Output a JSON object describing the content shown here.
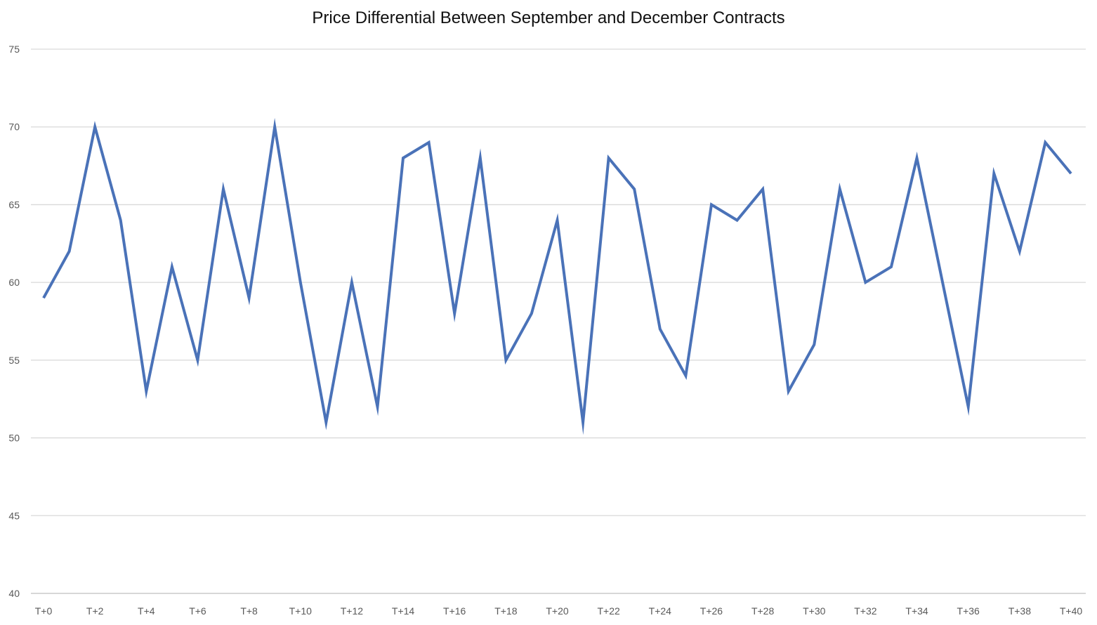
{
  "chart_data": {
    "type": "line",
    "title": "Price Differential Between September and December Contracts",
    "xlabel": "",
    "ylabel": "",
    "ylim": [
      40,
      75
    ],
    "y_ticks": [
      40,
      45,
      50,
      55,
      60,
      65,
      70,
      75
    ],
    "grid": true,
    "legend": "none",
    "x": [
      "T+0",
      "T+1",
      "T+2",
      "T+3",
      "T+4",
      "T+5",
      "T+6",
      "T+7",
      "T+8",
      "T+9",
      "T+10",
      "T+11",
      "T+12",
      "T+13",
      "T+14",
      "T+15",
      "T+16",
      "T+17",
      "T+18",
      "T+19",
      "T+20",
      "T+21",
      "T+22",
      "T+23",
      "T+24",
      "T+25",
      "T+26",
      "T+27",
      "T+28",
      "T+29",
      "T+30",
      "T+31",
      "T+32",
      "T+33",
      "T+34",
      "T+35",
      "T+36",
      "T+37",
      "T+38",
      "T+39",
      "T+40"
    ],
    "x_tick_labels": [
      "T+0",
      "T+2",
      "T+4",
      "T+6",
      "T+8",
      "T+10",
      "T+12",
      "T+14",
      "T+16",
      "T+18",
      "T+20",
      "T+22",
      "T+24",
      "T+26",
      "T+28",
      "T+30",
      "T+32",
      "T+34",
      "T+36",
      "T+38",
      "T+40"
    ],
    "series": [
      {
        "values": [
          59,
          62,
          70,
          64,
          53,
          61,
          55,
          66,
          59,
          70,
          60,
          51,
          60,
          52,
          68,
          69,
          58,
          68,
          55,
          58,
          64,
          51,
          68,
          66,
          57,
          54,
          65,
          64,
          66,
          53,
          56,
          66,
          60,
          61,
          68,
          60,
          52,
          67,
          62,
          69,
          67
        ],
        "color": "#4A72B8"
      }
    ],
    "gridline_color": "#d9d9d9",
    "axis_color": "#bfbfbf"
  }
}
